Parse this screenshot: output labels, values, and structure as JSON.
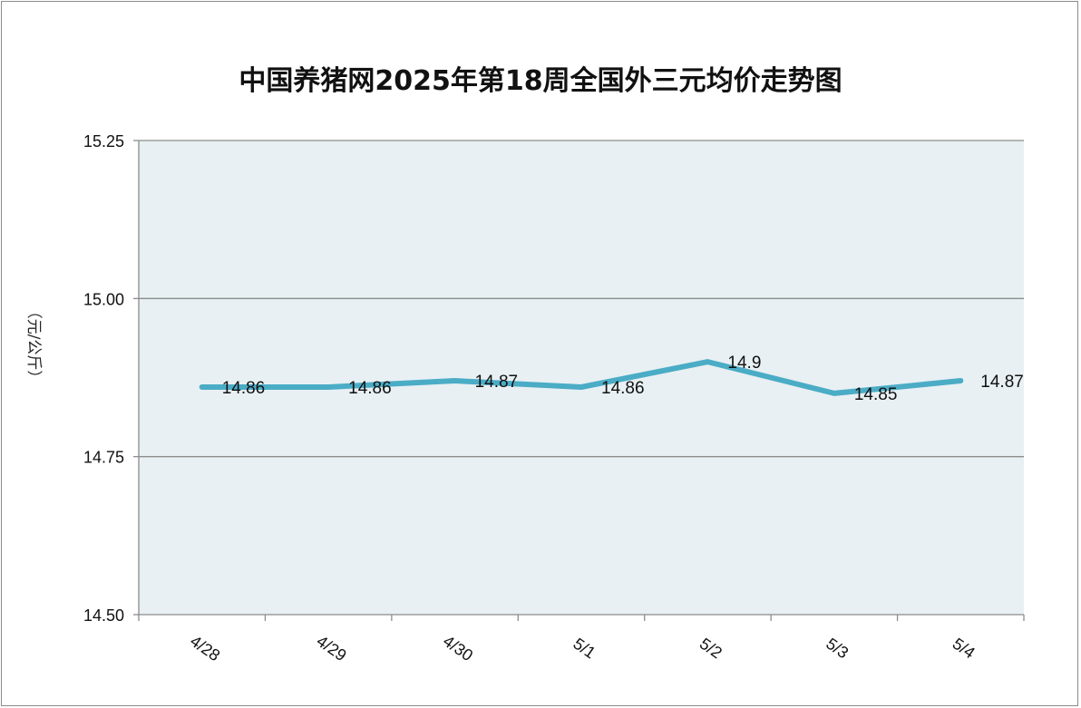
{
  "chart_data": {
    "type": "line",
    "title": "中国养猪网2025年第18周全国外三元均价走势图",
    "ylabel": "（元/公斤）",
    "xlabel": "",
    "categories": [
      "4/28",
      "4/29",
      "4/30",
      "5/1",
      "5/2",
      "5/3",
      "5/4"
    ],
    "values": [
      14.86,
      14.86,
      14.87,
      14.86,
      14.9,
      14.85,
      14.87
    ],
    "data_labels": [
      "14.86",
      "14.86",
      "14.87",
      "14.86",
      "14.9",
      "14.85",
      "14.87"
    ],
    "ylim": [
      14.5,
      15.25
    ],
    "yticks": [
      14.5,
      14.75,
      15.0,
      15.25
    ],
    "ytick_labels": [
      "14.50",
      "14.75",
      "15.00",
      "15.25"
    ],
    "grid": true,
    "line_color": "#4bacc6",
    "plot_background": "#e8f0f3",
    "grid_color": "#8c8c8c"
  }
}
